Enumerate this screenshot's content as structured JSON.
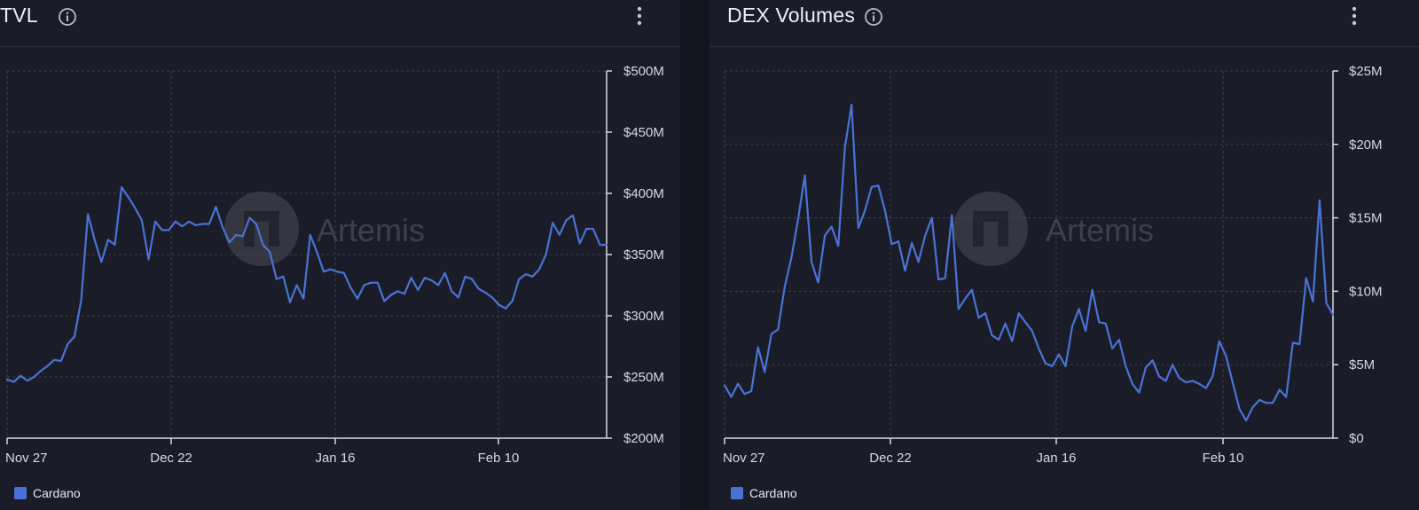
{
  "colors": {
    "line": "#4a72d6",
    "grid": "#3a3f4d",
    "axis": "#d7d9de",
    "tick_text": "#d7d9de",
    "watermark": "#5a5d66"
  },
  "watermark": {
    "text": "Artemis",
    "icon": "artemis-logo-icon"
  },
  "panels": [
    {
      "id": "tvl",
      "title": "TVL",
      "info_icon": "info-icon",
      "menu_icon": "kebab-menu-icon",
      "legend": {
        "label": "Cardano",
        "color": "#4a72d6"
      }
    },
    {
      "id": "dex",
      "title": "DEX Volumes",
      "info_icon": "info-icon",
      "menu_icon": "kebab-menu-icon",
      "legend": {
        "label": "Cardano",
        "color": "#4a72d6"
      }
    }
  ],
  "chart_data": [
    {
      "type": "line",
      "title": "TVL",
      "xlabel": "",
      "ylabel": "",
      "ylim": [
        200,
        500
      ],
      "y_unit": "M USD",
      "y_ticks": [
        200,
        250,
        300,
        350,
        400,
        450,
        500
      ],
      "y_tick_labels": [
        "$200M",
        "$250M",
        "$300M",
        "$350M",
        "$400M",
        "$450M",
        "$500M"
      ],
      "x_ticks": [
        {
          "index": 0,
          "label": "Nov 27"
        },
        {
          "index": 25,
          "label": "Dec 22"
        },
        {
          "index": 50,
          "label": "Jan 16"
        },
        {
          "index": 75,
          "label": "Feb 10"
        }
      ],
      "grid": true,
      "legend_position": "bottom-left",
      "series": [
        {
          "name": "Cardano",
          "values": [
            248,
            246,
            251,
            247,
            250,
            255,
            259,
            264,
            263,
            277,
            283,
            313,
            383,
            362,
            344,
            362,
            358,
            405,
            397,
            388,
            378,
            346,
            377,
            370,
            370,
            377,
            373,
            377,
            374,
            375,
            375,
            389,
            372,
            360,
            366,
            365,
            380,
            375,
            358,
            352,
            330,
            332,
            311,
            325,
            314,
            366,
            352,
            336,
            338,
            336,
            335,
            323,
            314,
            325,
            327,
            327,
            312,
            317,
            320,
            318,
            331,
            321,
            331,
            329,
            325,
            335,
            320,
            315,
            332,
            330,
            322,
            319,
            315,
            309,
            306,
            312,
            330,
            334,
            332,
            338,
            350,
            376,
            366,
            378,
            382,
            359,
            371,
            371,
            358,
            358
          ]
        }
      ]
    },
    {
      "type": "line",
      "title": "DEX Volumes",
      "xlabel": "",
      "ylabel": "",
      "ylim": [
        0,
        25
      ],
      "y_unit": "M USD",
      "y_ticks": [
        0,
        5,
        10,
        15,
        20,
        25
      ],
      "y_tick_labels": [
        "$0",
        "$5M",
        "$10M",
        "$15M",
        "$20M",
        "$25M"
      ],
      "x_ticks": [
        {
          "index": 0,
          "label": "Nov 27"
        },
        {
          "index": 25,
          "label": "Dec 22"
        },
        {
          "index": 50,
          "label": "Jan 16"
        },
        {
          "index": 75,
          "label": "Feb 10"
        }
      ],
      "grid": true,
      "legend_position": "bottom-left",
      "series": [
        {
          "name": "Cardano",
          "values": [
            3.6,
            2.8,
            3.7,
            3.0,
            3.2,
            6.2,
            4.5,
            7.1,
            7.4,
            10.3,
            12.3,
            14.9,
            17.9,
            12.0,
            10.6,
            13.8,
            14.4,
            13.1,
            19.8,
            22.7,
            14.3,
            15.5,
            17.1,
            17.2,
            15.5,
            13.2,
            13.4,
            11.4,
            13.3,
            12.0,
            13.8,
            15.0,
            10.8,
            10.9,
            15.2,
            8.8,
            9.5,
            10.1,
            8.2,
            8.5,
            7.0,
            6.7,
            7.8,
            6.6,
            8.5,
            7.9,
            7.3,
            6.1,
            5.1,
            4.9,
            5.7,
            4.9,
            7.6,
            8.8,
            7.3,
            10.1,
            7.9,
            7.8,
            6.1,
            6.7,
            4.9,
            3.7,
            3.1,
            4.8,
            5.3,
            4.2,
            3.9,
            5.0,
            4.1,
            3.8,
            3.9,
            3.7,
            3.4,
            4.2,
            6.6,
            5.6,
            3.8,
            2.0,
            1.2,
            2.1,
            2.6,
            2.4,
            2.4,
            3.3,
            2.8,
            6.5,
            6.4,
            10.9,
            9.3,
            16.2,
            9.2,
            8.4
          ]
        }
      ]
    }
  ]
}
